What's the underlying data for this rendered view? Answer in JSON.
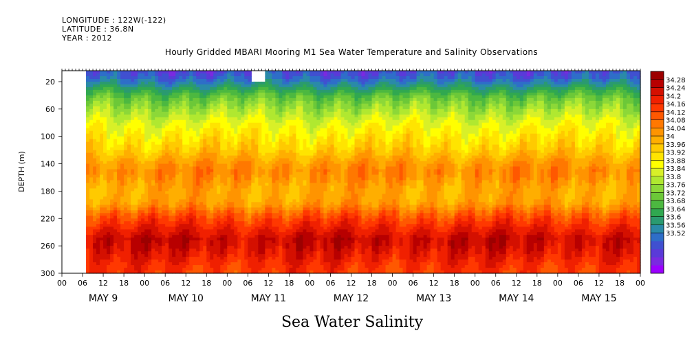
{
  "meta": {
    "longitude": "LONGITUDE : 122W(-122)",
    "latitude": "LATITUDE : 36.8N",
    "year": "YEAR : 2012"
  },
  "chart_data": {
    "type": "heatmap",
    "title": "Hourly Gridded MBARI Mooring M1 Sea Water Temperature and Salinity Observations",
    "subtitle": "Sea Water Salinity",
    "ylabel": "DEPTH (m)",
    "xlabel": "",
    "y_ticks": [
      20,
      60,
      100,
      140,
      180,
      220,
      260,
      300
    ],
    "y_range": [
      4,
      300
    ],
    "hour_ticks": [
      "00",
      "06",
      "12",
      "18",
      "00",
      "06",
      "12",
      "18",
      "00",
      "06",
      "12",
      "18",
      "00",
      "06",
      "12",
      "18",
      "00",
      "06",
      "12",
      "18",
      "00",
      "06",
      "12",
      "18",
      "00",
      "06",
      "12",
      "18",
      "00"
    ],
    "day_labels": [
      "MAY  9",
      "MAY 10",
      "MAY 11",
      "MAY 12",
      "MAY 13",
      "MAY 14",
      "MAY 15"
    ],
    "data_start_hour": 7,
    "total_hours": 168,
    "missing_patch": {
      "hour_from": 55,
      "hour_to": 59,
      "depth_to": 20
    },
    "colorbar_levels": [
      "34.28",
      "34.24",
      "34.2",
      "34.16",
      "34.12",
      "34.08",
      "34.04",
      "34",
      "33.96",
      "33.92",
      "33.88",
      "33.84",
      "33.8",
      "33.76",
      "33.72",
      "33.68",
      "33.64",
      "33.6",
      "33.56",
      "33.52"
    ],
    "colormap": [
      "#9b00ff",
      "#7a2ae0",
      "#5a3ad8",
      "#4050d0",
      "#2e6ec8",
      "#2a8aa8",
      "#2a9a70",
      "#30a850",
      "#4cb840",
      "#6cc838",
      "#8cd838",
      "#b0e830",
      "#d8f028",
      "#ffff00",
      "#ffe400",
      "#ffca00",
      "#ffae00",
      "#ff9400",
      "#ff7800",
      "#ff5800",
      "#ff3800",
      "#f02000",
      "#d41000",
      "#b80000",
      "#9c0000"
    ],
    "profile": [
      {
        "depth": 4,
        "value": 33.62
      },
      {
        "depth": 12,
        "value": 33.64
      },
      {
        "depth": 20,
        "value": 33.68
      },
      {
        "depth": 30,
        "value": 33.74
      },
      {
        "depth": 40,
        "value": 33.8
      },
      {
        "depth": 50,
        "value": 33.84
      },
      {
        "depth": 60,
        "value": 33.87
      },
      {
        "depth": 70,
        "value": 33.9
      },
      {
        "depth": 80,
        "value": 33.93
      },
      {
        "depth": 90,
        "value": 33.95
      },
      {
        "depth": 100,
        "value": 33.97
      },
      {
        "depth": 110,
        "value": 33.99
      },
      {
        "depth": 120,
        "value": 34.01
      },
      {
        "depth": 130,
        "value": 34.04
      },
      {
        "depth": 140,
        "value": 34.07
      },
      {
        "depth": 150,
        "value": 34.09
      },
      {
        "depth": 160,
        "value": 34.08
      },
      {
        "depth": 170,
        "value": 34.06
      },
      {
        "depth": 180,
        "value": 34.05
      },
      {
        "depth": 190,
        "value": 34.05
      },
      {
        "depth": 200,
        "value": 34.07
      },
      {
        "depth": 210,
        "value": 34.12
      },
      {
        "depth": 220,
        "value": 34.16
      },
      {
        "depth": 230,
        "value": 34.19
      },
      {
        "depth": 240,
        "value": 34.22
      },
      {
        "depth": 250,
        "value": 34.25
      },
      {
        "depth": 260,
        "value": 34.24
      },
      {
        "depth": 270,
        "value": 34.22
      },
      {
        "depth": 280,
        "value": 34.2
      },
      {
        "depth": 290,
        "value": 34.18
      },
      {
        "depth": 300,
        "value": 34.17
      }
    ]
  }
}
